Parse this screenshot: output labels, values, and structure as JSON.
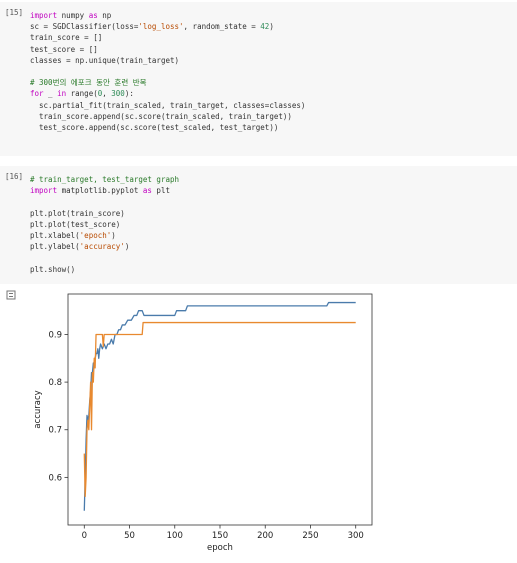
{
  "cells": [
    {
      "prompt": "[15]",
      "lines": [
        [
          {
            "t": "kw",
            "v": "import"
          },
          {
            "t": "",
            "v": " numpy "
          },
          {
            "t": "kw",
            "v": "as"
          },
          {
            "t": "",
            "v": " np"
          }
        ],
        [
          {
            "t": "",
            "v": "sc = SGDClassifier(loss="
          },
          {
            "t": "str",
            "v": "'log_loss'"
          },
          {
            "t": "",
            "v": ", random_state = "
          },
          {
            "t": "num",
            "v": "42"
          },
          {
            "t": "",
            "v": ")"
          }
        ],
        [
          {
            "t": "",
            "v": "train_score = []"
          }
        ],
        [
          {
            "t": "",
            "v": "test_score = []"
          }
        ],
        [
          {
            "t": "",
            "v": "classes = np.unique(train_target)"
          }
        ],
        [],
        [
          {
            "t": "cm",
            "v": "# 300번의 에포크 동안 훈련 반복"
          }
        ],
        [
          {
            "t": "kw",
            "v": "for"
          },
          {
            "t": "",
            "v": " _ "
          },
          {
            "t": "kw",
            "v": "in"
          },
          {
            "t": "",
            "v": " range("
          },
          {
            "t": "num",
            "v": "0"
          },
          {
            "t": "",
            "v": ", "
          },
          {
            "t": "num",
            "v": "300"
          },
          {
            "t": "",
            "v": "):"
          }
        ],
        [
          {
            "t": "",
            "v": "  sc.partial_fit(train_scaled, train_target, classes=classes)"
          }
        ],
        [
          {
            "t": "",
            "v": "  train_score.append(sc.score(train_scaled, train_target))"
          }
        ],
        [
          {
            "t": "",
            "v": "  test_score.append(sc.score(test_scaled, test_target))"
          }
        ]
      ]
    },
    {
      "prompt": "[16]",
      "lines": [
        [
          {
            "t": "cm",
            "v": "# train_target, test_target graph"
          }
        ],
        [
          {
            "t": "kw",
            "v": "import"
          },
          {
            "t": "",
            "v": " matplotlib.pyplot "
          },
          {
            "t": "kw",
            "v": "as"
          },
          {
            "t": "",
            "v": " plt"
          }
        ],
        [],
        [
          {
            "t": "",
            "v": "plt.plot(train_score)"
          }
        ],
        [
          {
            "t": "",
            "v": "plt.plot(test_score)"
          }
        ],
        [
          {
            "t": "",
            "v": "plt.xlabel("
          },
          {
            "t": "str",
            "v": "'epoch'"
          },
          {
            "t": "",
            "v": ")"
          }
        ],
        [
          {
            "t": "",
            "v": "plt.ylabel("
          },
          {
            "t": "str",
            "v": "'accuracy'"
          },
          {
            "t": "",
            "v": ")"
          }
        ],
        [],
        [
          {
            "t": "",
            "v": "plt.show()"
          }
        ]
      ]
    }
  ],
  "output_icon": "output-toggle-icon",
  "chart_data": {
    "type": "line",
    "xlabel": "epoch",
    "ylabel": "accuracy",
    "xlim": [
      -18,
      318
    ],
    "ylim": [
      0.5,
      0.985
    ],
    "xticks": [
      0,
      50,
      100,
      150,
      200,
      250,
      300
    ],
    "yticks": [
      0.6,
      0.7,
      0.8,
      0.9
    ],
    "xtick_labels": [
      "0",
      "50",
      "100",
      "150",
      "200",
      "250",
      "300"
    ],
    "ytick_labels": [
      "0.6",
      "0.7",
      "0.8",
      "0.9"
    ],
    "grid": false,
    "legend": "none",
    "series": [
      {
        "color": "#4a7bab",
        "points": [
          [
            0,
            0.53
          ],
          [
            1,
            0.6
          ],
          [
            2,
            0.68
          ],
          [
            3,
            0.73
          ],
          [
            4,
            0.72
          ],
          [
            5,
            0.73
          ],
          [
            6,
            0.76
          ],
          [
            7,
            0.78
          ],
          [
            8,
            0.82
          ],
          [
            9,
            0.82
          ],
          [
            10,
            0.84
          ],
          [
            11,
            0.83
          ],
          [
            12,
            0.85
          ],
          [
            13,
            0.86
          ],
          [
            14,
            0.86
          ],
          [
            15,
            0.87
          ],
          [
            16,
            0.85
          ],
          [
            17,
            0.87
          ],
          [
            18,
            0.88
          ],
          [
            20,
            0.87
          ],
          [
            22,
            0.88
          ],
          [
            24,
            0.87
          ],
          [
            26,
            0.88
          ],
          [
            28,
            0.88
          ],
          [
            30,
            0.89
          ],
          [
            32,
            0.88
          ],
          [
            34,
            0.9
          ],
          [
            36,
            0.9
          ],
          [
            38,
            0.91
          ],
          [
            40,
            0.91
          ],
          [
            42,
            0.92
          ],
          [
            45,
            0.92
          ],
          [
            48,
            0.93
          ],
          [
            52,
            0.93
          ],
          [
            55,
            0.94
          ],
          [
            58,
            0.94
          ],
          [
            60,
            0.95
          ],
          [
            64,
            0.95
          ],
          [
            66,
            0.94
          ],
          [
            100,
            0.94
          ],
          [
            102,
            0.95
          ],
          [
            112,
            0.95
          ],
          [
            114,
            0.96
          ],
          [
            268,
            0.96
          ],
          [
            270,
            0.967
          ],
          [
            300,
            0.967
          ]
        ]
      },
      {
        "color": "#e8892f",
        "points": [
          [
            0,
            0.65
          ],
          [
            1,
            0.56
          ],
          [
            2,
            0.6
          ],
          [
            3,
            0.7
          ],
          [
            4,
            0.72
          ],
          [
            5,
            0.7
          ],
          [
            6,
            0.75
          ],
          [
            7,
            0.8
          ],
          [
            8,
            0.7
          ],
          [
            9,
            0.82
          ],
          [
            10,
            0.8
          ],
          [
            11,
            0.85
          ],
          [
            12,
            0.83
          ],
          [
            13,
            0.9
          ],
          [
            20,
            0.9
          ],
          [
            21,
            0.875
          ],
          [
            22,
            0.9
          ],
          [
            64,
            0.9
          ],
          [
            65,
            0.925
          ],
          [
            300,
            0.925
          ]
        ]
      }
    ]
  }
}
